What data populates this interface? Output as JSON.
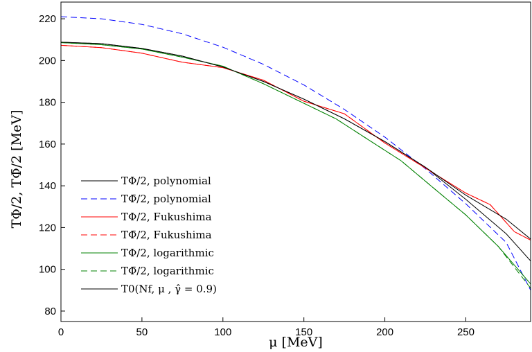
{
  "chart_data": {
    "type": "line",
    "xlabel": "μ  [MeV]",
    "ylabel": "TΦ/2, TΦ̄/2 [MeV]",
    "xlim": [
      0,
      290
    ],
    "ylim": [
      75,
      228
    ],
    "xticks": [
      0,
      50,
      100,
      150,
      200,
      250
    ],
    "yticks": [
      80,
      100,
      120,
      140,
      160,
      180,
      200,
      220
    ],
    "grid": false,
    "legend_position": "bottom-left",
    "series": [
      {
        "name": "TΦ/2, polynomial",
        "color": "#000000",
        "dash": "solid",
        "x": [
          0,
          25,
          50,
          75,
          100,
          125,
          150,
          175,
          200,
          225,
          250,
          275,
          290
        ],
        "y": [
          208.8,
          208.1,
          205.8,
          202.1,
          196.9,
          190.0,
          181.5,
          172.1,
          161.2,
          148.9,
          133.5,
          117.0,
          104.0
        ]
      },
      {
        "name": "TΦ̄/2, polynomial",
        "color": "#0000ff",
        "dash": "dashed",
        "x": [
          0,
          25,
          50,
          75,
          100,
          125,
          150,
          175,
          200,
          225,
          250,
          275,
          290
        ],
        "y": [
          221.0,
          220.0,
          217.3,
          212.8,
          206.4,
          198.2,
          188.3,
          176.6,
          163.3,
          148.2,
          131.4,
          112.8,
          90.0
        ]
      },
      {
        "name": "TΦ/2, Fukushima",
        "color": "#ff0000",
        "dash": "solid",
        "x": [
          0,
          25,
          50,
          75,
          100,
          125,
          150,
          175,
          200,
          225,
          250,
          265,
          280,
          290
        ],
        "y": [
          207.3,
          206.2,
          203.5,
          199.2,
          196.6,
          190.6,
          180.5,
          174.5,
          160.5,
          148.5,
          136.5,
          131.0,
          118.0,
          114.0
        ]
      },
      {
        "name": "TΦ̄/2, Fukushima",
        "color": "#ff0000",
        "dash": "dashed",
        "x": [
          0,
          25,
          50,
          75,
          100,
          125,
          150,
          175,
          200,
          225,
          250,
          265,
          280,
          290
        ],
        "y": [
          207.3,
          206.2,
          203.5,
          199.2,
          196.6,
          190.6,
          180.5,
          174.5,
          160.5,
          148.5,
          136.5,
          131.0,
          118.0,
          114.0
        ]
      },
      {
        "name": "TΦ/2, logarithmic",
        "color": "#008000",
        "dash": "solid",
        "x": [
          0,
          25,
          50,
          75,
          100,
          125,
          150,
          170,
          190,
          210,
          230,
          250,
          270,
          290
        ],
        "y": [
          208.6,
          207.6,
          205.5,
          201.6,
          197.3,
          188.9,
          179.5,
          172.0,
          162.0,
          152.0,
          139.0,
          126.0,
          111.0,
          93.0
        ]
      },
      {
        "name": "TΦ̄/2, logarithmic",
        "color": "#008000",
        "dash": "dashed",
        "x": [
          0,
          25,
          50,
          75,
          100,
          125,
          150,
          170,
          190,
          210,
          230,
          250,
          270,
          290
        ],
        "y": [
          208.6,
          207.6,
          205.5,
          201.6,
          197.3,
          188.9,
          179.5,
          172.0,
          162.0,
          152.0,
          139.0,
          126.0,
          111.0,
          91.0
        ]
      },
      {
        "name": "T0(Nf, μ , γ̂ = 0.9)",
        "color": "#000000",
        "dash": "solid",
        "x": [
          0,
          25,
          50,
          75,
          100,
          125,
          150,
          175,
          200,
          225,
          250,
          275,
          290
        ],
        "y": [
          208.8,
          208.1,
          205.8,
          202.1,
          196.9,
          190.0,
          181.5,
          172.1,
          161.2,
          148.9,
          135.5,
          124.0,
          114.5
        ]
      }
    ]
  }
}
